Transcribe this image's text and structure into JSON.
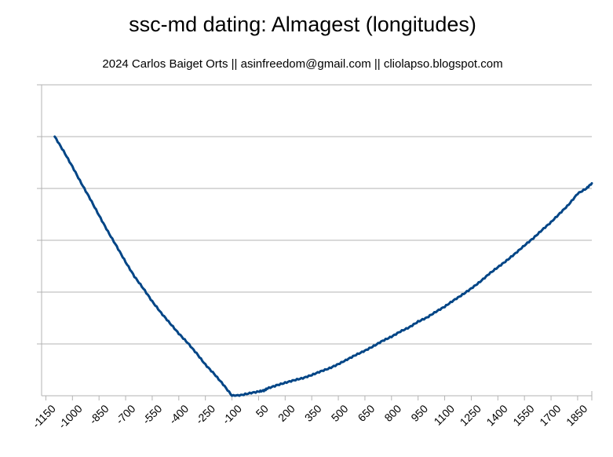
{
  "title": "ssc-md dating: Almagest (longitudes)",
  "subtitle": "2024 Carlos Baiget Orts || asinfreedom@gmail.com || cliolapso.blogspot.com",
  "colors": {
    "series": "#004586",
    "grid": "#b3b3b3",
    "axis": "#b3b3b3"
  },
  "chart_data": {
    "type": "line",
    "title": "ssc-md dating: Almagest (longitudes)",
    "subtitle": "2024 Carlos Baiget Orts || asinfreedom@gmail.com || cliolapso.blogspot.com",
    "xlabel": "",
    "ylabel": "",
    "xlim": [
      -1174,
      1930
    ],
    "ylim": [
      0,
      6
    ],
    "grid": true,
    "legend": "none",
    "x_tick_labels": [
      "-1150",
      "-1000",
      "-850",
      "-700",
      "-550",
      "-400",
      "-250",
      "-100",
      "50",
      "200",
      "350",
      "500",
      "650",
      "800",
      "950",
      "1100",
      "1250",
      "1400",
      "1550",
      "1700",
      "1850"
    ],
    "x_tick_values": [
      -1150,
      -1000,
      -850,
      -700,
      -550,
      -400,
      -250,
      -100,
      50,
      200,
      350,
      500,
      650,
      800,
      950,
      1100,
      1250,
      1400,
      1550,
      1700,
      1850
    ],
    "y_gridlines": [
      1,
      2,
      3,
      4,
      5,
      6
    ],
    "series": [
      {
        "x": [
          -1100,
          -1050,
          -1000,
          -950,
          -900,
          -850,
          -800,
          -750,
          -700,
          -650,
          -600,
          -550,
          -500,
          -450,
          -400,
          -350,
          -300,
          -250,
          -200,
          -150,
          -100,
          -50,
          0,
          50,
          80,
          100,
          150,
          200,
          250,
          300,
          350,
          400,
          450,
          500,
          550,
          600,
          650,
          700,
          750,
          800,
          850,
          900,
          950,
          1000,
          1050,
          1100,
          1150,
          1200,
          1250,
          1300,
          1350,
          1400,
          1450,
          1500,
          1550,
          1600,
          1650,
          1700,
          1750,
          1800,
          1850,
          1900,
          1930
        ],
        "y": [
          5.0,
          4.72,
          4.42,
          4.1,
          3.8,
          3.48,
          3.17,
          2.88,
          2.58,
          2.3,
          2.07,
          1.82,
          1.6,
          1.4,
          1.2,
          1.02,
          0.82,
          0.6,
          0.42,
          0.22,
          0.0,
          0.01,
          0.05,
          0.08,
          0.1,
          0.14,
          0.2,
          0.25,
          0.3,
          0.34,
          0.4,
          0.47,
          0.53,
          0.61,
          0.7,
          0.79,
          0.87,
          0.96,
          1.06,
          1.14,
          1.24,
          1.32,
          1.43,
          1.51,
          1.62,
          1.72,
          1.84,
          1.95,
          2.07,
          2.2,
          2.35,
          2.48,
          2.61,
          2.75,
          2.9,
          3.04,
          3.2,
          3.35,
          3.52,
          3.69,
          3.9,
          4.0,
          4.1
        ]
      }
    ]
  }
}
